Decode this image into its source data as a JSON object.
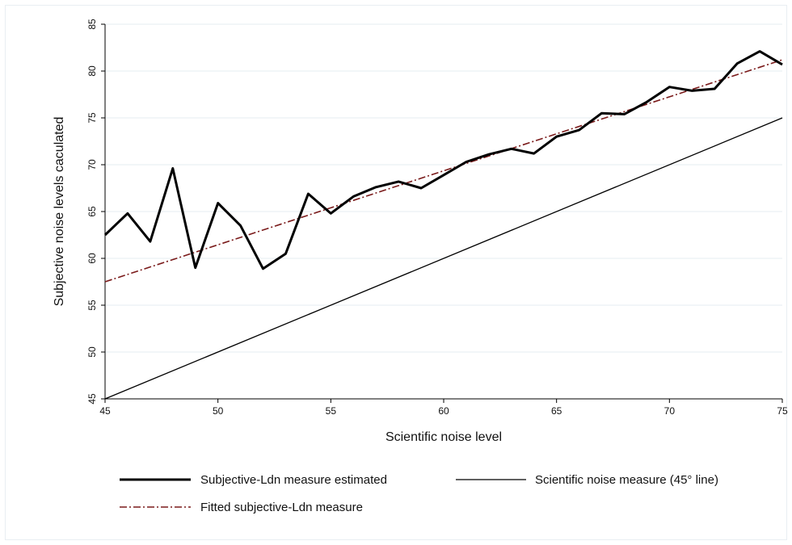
{
  "chart_data": {
    "type": "line",
    "title": "",
    "xlabel": "Scientific noise level",
    "ylabel": "Subjective noise levels caculated",
    "xlim": [
      45,
      75
    ],
    "ylim": [
      45,
      85
    ],
    "xticks": [
      45,
      50,
      55,
      60,
      65,
      70,
      75
    ],
    "yticks": [
      45,
      50,
      55,
      60,
      65,
      70,
      75,
      80,
      85
    ],
    "grid": "horizontal",
    "legend_position": "bottom",
    "series": [
      {
        "name": "Subjective-Ldn measure estimated",
        "color": "#000000",
        "style": "solid-thick",
        "x": [
          45,
          46,
          47,
          48,
          49,
          50,
          51,
          52,
          53,
          54,
          55,
          56,
          57,
          58,
          59,
          60,
          61,
          62,
          63,
          64,
          65,
          66,
          67,
          68,
          69,
          70,
          71,
          72,
          73,
          74,
          75
        ],
        "y": [
          62.5,
          64.8,
          61.8,
          69.6,
          59.0,
          65.9,
          63.5,
          58.9,
          60.5,
          66.9,
          64.8,
          66.6,
          67.6,
          68.2,
          67.5,
          68.9,
          70.3,
          71.1,
          71.7,
          71.2,
          73.0,
          73.7,
          75.5,
          75.4,
          76.7,
          78.3,
          77.9,
          78.1,
          80.8,
          82.1,
          80.7
        ]
      },
      {
        "name": "Scientific noise measure (45° line)",
        "color": "#000000",
        "style": "solid-thin",
        "x": [
          45,
          75
        ],
        "y": [
          45,
          75
        ]
      },
      {
        "name": "Fitted subjective-Ldn measure",
        "color": "#7a1a1a",
        "style": "dash-dot",
        "x": [
          45,
          75
        ],
        "y": [
          57.5,
          81.2
        ]
      }
    ]
  }
}
